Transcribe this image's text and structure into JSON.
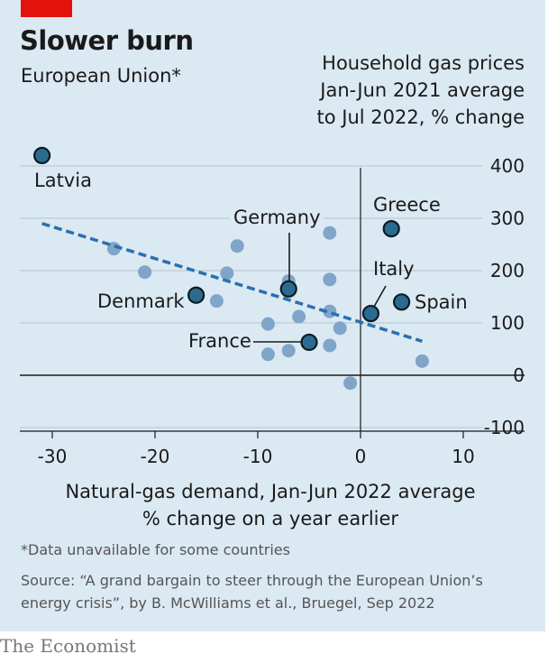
{
  "header": {
    "title": "Slower burn",
    "subtitle": "European Union*",
    "accent_color": "#e3120b"
  },
  "chart_data": {
    "type": "scatter",
    "ylabel_lines": [
      "Household gas prices",
      "Jan-Jun 2021 average",
      "to Jul 2022, % change"
    ],
    "xlabel_lines": [
      "Natural-gas demand, Jan-Jun 2022 average",
      "% change on a year earlier"
    ],
    "xlim": [
      -30,
      10
    ],
    "ylim": [
      -100,
      400
    ],
    "xticks": [
      -30,
      -20,
      -10,
      0,
      10
    ],
    "yticks": [
      400,
      300,
      200,
      100,
      0,
      -100
    ],
    "x_tick_labels": [
      "-30",
      "-20",
      "-10",
      "0",
      "10"
    ],
    "y_tick_labels": [
      "400",
      "300",
      "200",
      "100",
      "0",
      "-100"
    ],
    "trendline": {
      "x": [
        -31,
        6
      ],
      "y": [
        290,
        65
      ],
      "color": "#2a6fb0"
    },
    "highlight_color": "#2a6b8f",
    "other_color": "#7fa5c9",
    "labelled_points": [
      {
        "name": "Latvia",
        "x": -31,
        "y": 420
      },
      {
        "name": "Greece",
        "x": 3,
        "y": 280
      },
      {
        "name": "Germany",
        "x": -7,
        "y": 165
      },
      {
        "name": "Italy",
        "x": 1,
        "y": 118
      },
      {
        "name": "Spain",
        "x": 4,
        "y": 140
      },
      {
        "name": "Denmark",
        "x": -16,
        "y": 153
      },
      {
        "name": "France",
        "x": -5,
        "y": 63
      }
    ],
    "other_points": [
      {
        "x": -24,
        "y": 242
      },
      {
        "x": -21,
        "y": 197
      },
      {
        "x": -12,
        "y": 247
      },
      {
        "x": -13,
        "y": 195
      },
      {
        "x": -14,
        "y": 142
      },
      {
        "x": -3,
        "y": 272
      },
      {
        "x": -7,
        "y": 180
      },
      {
        "x": -3,
        "y": 183
      },
      {
        "x": -3,
        "y": 122
      },
      {
        "x": -6,
        "y": 112
      },
      {
        "x": -2,
        "y": 90
      },
      {
        "x": -9,
        "y": 98
      },
      {
        "x": -3,
        "y": 57
      },
      {
        "x": -7,
        "y": 47
      },
      {
        "x": -9,
        "y": 40
      },
      {
        "x": -1,
        "y": -15
      },
      {
        "x": 6,
        "y": 27
      }
    ]
  },
  "footer": {
    "footnote": "*Data unavailable for some countries",
    "source": "Source: “A grand bargain to steer through the European Union’s energy crisis”, by B. McWilliams et al., Bruegel, Sep 2022",
    "brand": "The Economist"
  }
}
